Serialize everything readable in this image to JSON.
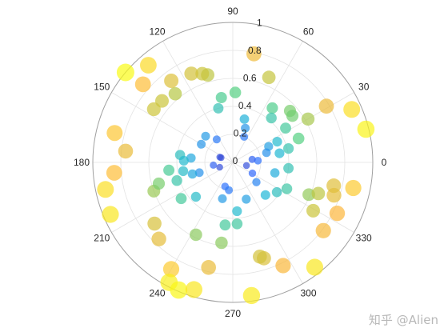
{
  "chart_data": {
    "type": "scatter",
    "coordinate_system": "polar",
    "angle_unit": "degrees",
    "theta_ticks": [
      0,
      30,
      60,
      90,
      120,
      150,
      180,
      210,
      240,
      270,
      300,
      330
    ],
    "theta_tick_labels": [
      "0",
      "30",
      "60",
      "90",
      "120",
      "150",
      "180",
      "210",
      "240",
      "270",
      "300",
      "330"
    ],
    "r_ticks": [
      0,
      0.2,
      0.4,
      0.6,
      0.8,
      1
    ],
    "r_tick_labels": [
      "0",
      "0.2",
      "0.4",
      "0.6",
      "0.8",
      "1"
    ],
    "rlim": [
      0,
      1
    ],
    "grid": true,
    "marker_alpha": 0.7,
    "size_and_color_encode": "r",
    "colormap": [
      "#3e26a8",
      "#2f6cff",
      "#1fb7d6",
      "#54d081",
      "#c9c53a",
      "#fdb73c",
      "#f9fb15"
    ],
    "points": [
      {
        "theta": 88,
        "r": 0.5
      },
      {
        "theta": 79,
        "r": 0.79
      },
      {
        "theta": 67,
        "r": 0.66
      },
      {
        "theta": 75,
        "r": 0.32
      },
      {
        "theta": 70,
        "r": 0.26
      },
      {
        "theta": 66,
        "r": 0.2
      },
      {
        "theta": 54,
        "r": 0.48
      },
      {
        "theta": 49,
        "r": 0.42
      },
      {
        "theta": 42,
        "r": 0.55
      },
      {
        "theta": 38,
        "r": 0.54
      },
      {
        "theta": 33,
        "r": 0.45
      },
      {
        "theta": 30,
        "r": 0.62
      },
      {
        "theta": 31,
        "r": 0.78
      },
      {
        "theta": 24,
        "r": 0.93
      },
      {
        "theta": 14,
        "r": 0.98
      },
      {
        "theta": 24,
        "r": 0.28
      },
      {
        "theta": 25,
        "r": 0.35
      },
      {
        "theta": 14,
        "r": 0.41
      },
      {
        "theta": 16,
        "r": 0.25
      },
      {
        "theta": 11,
        "r": 0.34
      },
      {
        "theta": 4,
        "r": 0.18
      },
      {
        "theta": 9,
        "r": 0.14
      },
      {
        "theta": 20,
        "r": 0.5
      },
      {
        "theta": 125,
        "r": 0.2
      },
      {
        "theta": 136,
        "r": 0.27
      },
      {
        "theta": 100,
        "r": 0.47
      },
      {
        "theta": 106,
        "r": 0.65
      },
      {
        "theta": 109,
        "r": 0.67
      },
      {
        "theta": 105,
        "r": 0.4
      },
      {
        "theta": 115,
        "r": 0.7
      },
      {
        "theta": 130,
        "r": 0.64
      },
      {
        "theta": 127,
        "r": 0.73
      },
      {
        "theta": 139,
        "r": 0.67
      },
      {
        "theta": 139,
        "r": 0.85
      },
      {
        "theta": 131,
        "r": 0.92
      },
      {
        "theta": 140,
        "r": 1.0
      },
      {
        "theta": 146,
        "r": 0.68
      },
      {
        "theta": 150,
        "r": 0.26
      },
      {
        "theta": 158,
        "r": 0.1
      },
      {
        "theta": 158,
        "r": 0.09
      },
      {
        "theta": 172,
        "r": 0.38
      },
      {
        "theta": 174,
        "r": 0.3
      },
      {
        "theta": 188,
        "r": 0.14
      },
      {
        "theta": 200,
        "r": 0.1
      },
      {
        "theta": 197,
        "r": 0.25
      },
      {
        "theta": 190,
        "r": 0.36
      },
      {
        "theta": 196,
        "r": 0.3
      },
      {
        "theta": 200,
        "r": 0.6
      },
      {
        "theta": 198,
        "r": 0.42
      },
      {
        "theta": 187,
        "r": 0.46
      },
      {
        "theta": 178,
        "r": 0.35
      },
      {
        "theta": 174,
        "r": 0.77
      },
      {
        "theta": 166,
        "r": 0.87
      },
      {
        "theta": 185,
        "r": 0.85
      },
      {
        "theta": 192,
        "r": 0.93
      },
      {
        "theta": 203,
        "r": 0.95
      },
      {
        "theta": 196,
        "r": 0.55
      },
      {
        "theta": 215,
        "r": 0.45
      },
      {
        "theta": 223,
        "r": 0.36
      },
      {
        "theta": 218,
        "r": 0.71
      },
      {
        "theta": 226,
        "r": 0.76
      },
      {
        "theta": 243,
        "r": 0.58
      },
      {
        "theta": 240,
        "r": 0.88
      },
      {
        "theta": 242,
        "r": 0.97
      },
      {
        "theta": 247,
        "r": 0.99
      },
      {
        "theta": 253,
        "r": 0.95
      },
      {
        "theta": 257,
        "r": 0.77
      },
      {
        "theta": 262,
        "r": 0.58
      },
      {
        "theta": 263,
        "r": 0.45
      },
      {
        "theta": 254,
        "r": 0.27
      },
      {
        "theta": 252,
        "r": 0.18
      },
      {
        "theta": 262,
        "r": 0.2
      },
      {
        "theta": 275,
        "r": 0.35
      },
      {
        "theta": 290,
        "r": 0.28
      },
      {
        "theta": 274,
        "r": 0.44
      },
      {
        "theta": 288,
        "r": 0.72
      },
      {
        "theta": 286,
        "r": 0.7
      },
      {
        "theta": 278,
        "r": 0.96
      },
      {
        "theta": 296,
        "r": 0.82
      },
      {
        "theta": 315,
        "r": 0.33
      },
      {
        "theta": 326,
        "r": 0.38
      },
      {
        "theta": 337,
        "r": 0.59
      },
      {
        "theta": 329,
        "r": 0.67
      },
      {
        "theta": 334,
        "r": 0.83
      },
      {
        "theta": 323,
        "r": 0.81
      },
      {
        "theta": 342,
        "r": 0.76
      },
      {
        "theta": 347,
        "r": 0.74
      },
      {
        "theta": 348,
        "r": 0.88
      },
      {
        "theta": 340,
        "r": 0.65
      },
      {
        "theta": 334,
        "r": 0.43
      },
      {
        "theta": 346,
        "r": 0.31
      },
      {
        "theta": 347,
        "r": 0.1
      },
      {
        "theta": 331,
        "r": 0.16
      },
      {
        "theta": 354,
        "r": 0.4
      },
      {
        "theta": 308,
        "r": 0.95
      },
      {
        "theta": 320,
        "r": 0.22
      }
    ]
  },
  "watermark": "知乎 @Alien"
}
